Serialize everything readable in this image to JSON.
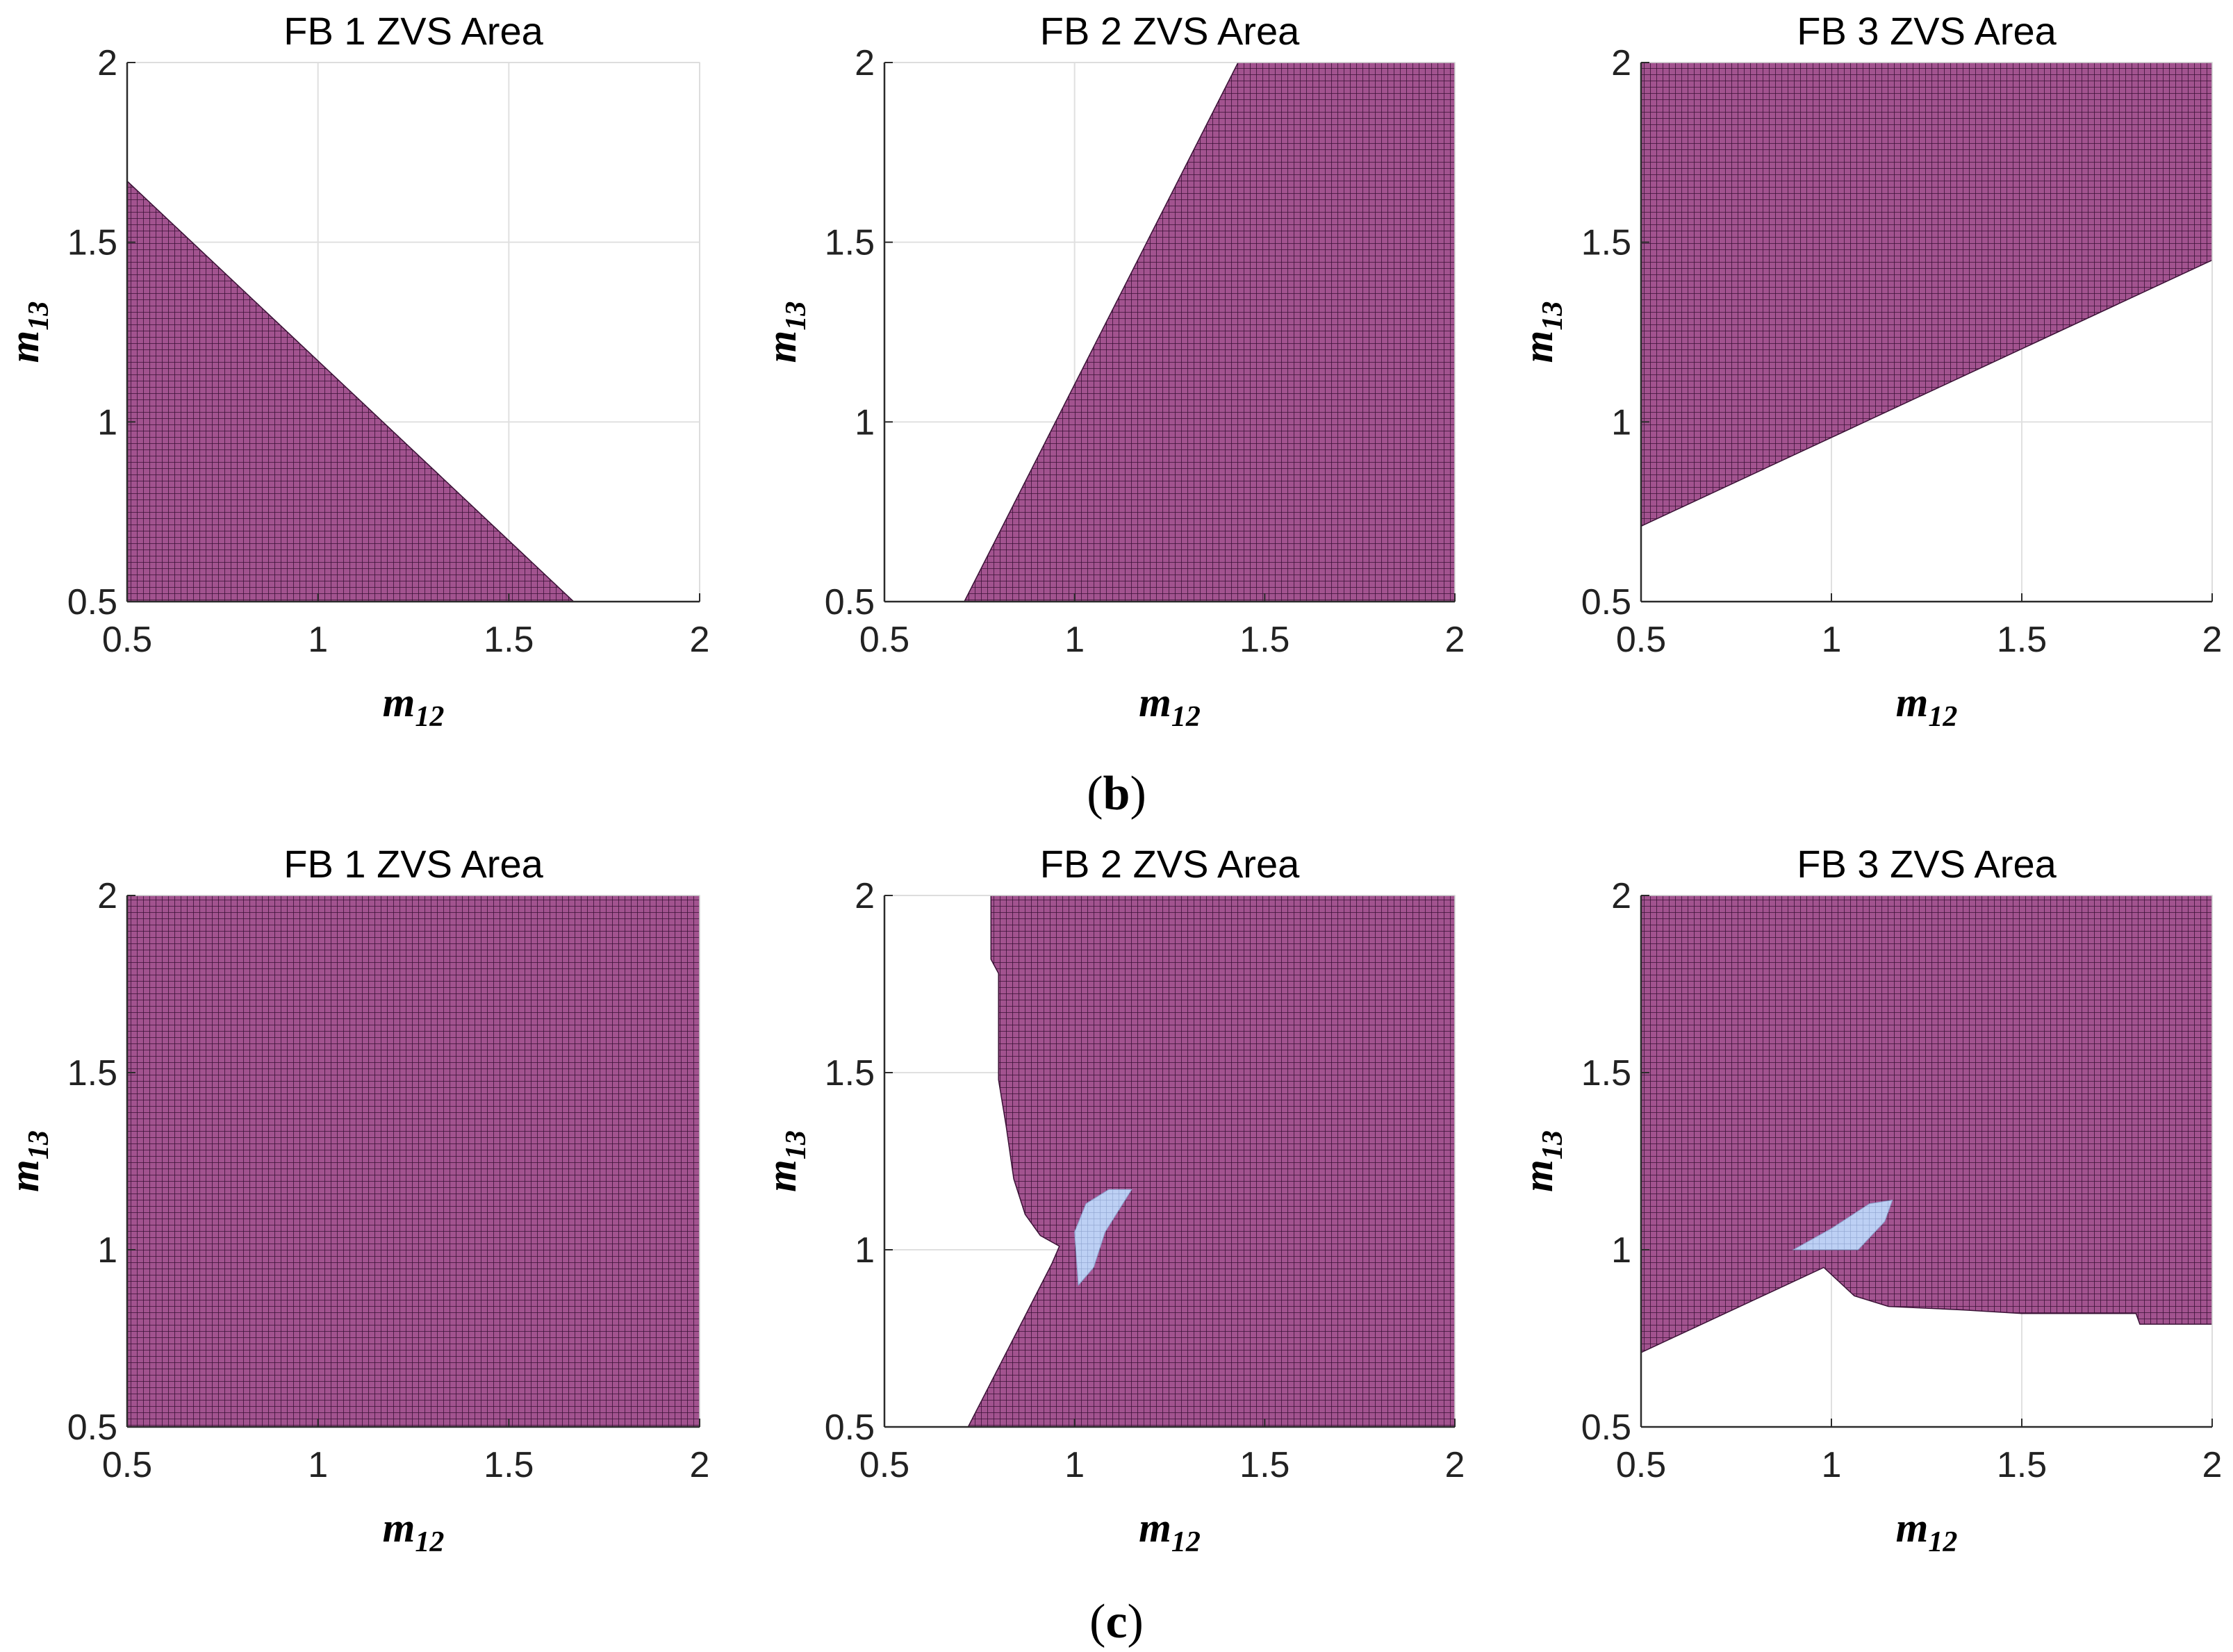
{
  "colors": {
    "zvs_fill": "#a2538f",
    "zvs_grid": "#3a1236",
    "overlap_fill": "#bdd0f4",
    "overlap_grid": "#8ea3cf",
    "gridline": "#e0e0e0",
    "axis": "#2b2b2b"
  },
  "chart_data": [
    {
      "type": "heatmap",
      "row": 1,
      "col": 1,
      "panel": "b",
      "title": "FB 1 ZVS Area",
      "xlabel": "m",
      "xlabel_sub": "12",
      "ylabel": "m",
      "ylabel_sub": "13",
      "xlim": [
        0.5,
        2
      ],
      "ylim": [
        0.5,
        2
      ],
      "xticks": [
        "0.5",
        "1",
        "1.5",
        "2"
      ],
      "yticks": [
        "0.5",
        "1",
        "1.5",
        "2"
      ],
      "zvs_region": [
        [
          0.5,
          0.5
        ],
        [
          1.67,
          0.5
        ],
        [
          0.5,
          1.67
        ]
      ],
      "overlap_region": []
    },
    {
      "type": "heatmap",
      "row": 1,
      "col": 2,
      "panel": "b",
      "title": "FB 2 ZVS Area",
      "xlabel": "m",
      "xlabel_sub": "12",
      "ylabel": "m",
      "ylabel_sub": "13",
      "xlim": [
        0.5,
        2
      ],
      "ylim": [
        0.5,
        2
      ],
      "xticks": [
        "0.5",
        "1",
        "1.5",
        "2"
      ],
      "yticks": [
        "0.5",
        "1",
        "1.5",
        "2"
      ],
      "zvs_region": [
        [
          0.71,
          0.5
        ],
        [
          2,
          0.5
        ],
        [
          2,
          2
        ],
        [
          1.43,
          2
        ]
      ],
      "overlap_region": []
    },
    {
      "type": "heatmap",
      "row": 1,
      "col": 3,
      "panel": "b",
      "title": "FB 3 ZVS Area",
      "xlabel": "m",
      "xlabel_sub": "12",
      "ylabel": "m",
      "ylabel_sub": "13",
      "xlim": [
        0.5,
        2
      ],
      "ylim": [
        0.5,
        2
      ],
      "xticks": [
        "0.5",
        "1",
        "1.5",
        "2"
      ],
      "yticks": [
        "0.5",
        "1",
        "1.5",
        "2"
      ],
      "zvs_region": [
        [
          0.5,
          0.71
        ],
        [
          2,
          1.45
        ],
        [
          2,
          2
        ],
        [
          0.5,
          2
        ]
      ],
      "overlap_region": []
    },
    {
      "type": "heatmap",
      "row": 2,
      "col": 1,
      "panel": "c",
      "title": "FB 1 ZVS Area",
      "xlabel": "m",
      "xlabel_sub": "12",
      "ylabel": "m",
      "ylabel_sub": "13",
      "xlim": [
        0.5,
        2
      ],
      "ylim": [
        0.5,
        2
      ],
      "xticks": [
        "0.5",
        "1",
        "1.5",
        "2"
      ],
      "yticks": [
        "0.5",
        "1",
        "1.5",
        "2"
      ],
      "zvs_region": [
        [
          0.5,
          0.5
        ],
        [
          2,
          0.5
        ],
        [
          2,
          2
        ],
        [
          0.5,
          2
        ]
      ],
      "overlap_region": []
    },
    {
      "type": "heatmap",
      "row": 2,
      "col": 2,
      "panel": "c",
      "title": "FB 2 ZVS Area",
      "xlabel": "m",
      "xlabel_sub": "12",
      "ylabel": "m",
      "ylabel_sub": "13",
      "xlim": [
        0.5,
        2
      ],
      "ylim": [
        0.5,
        2
      ],
      "xticks": [
        "0.5",
        "1",
        "1.5",
        "2"
      ],
      "yticks": [
        "0.5",
        "1",
        "1.5",
        "2"
      ],
      "zvs_region": [
        [
          0.72,
          0.5
        ],
        [
          2,
          0.5
        ],
        [
          2,
          2
        ],
        [
          0.78,
          2
        ],
        [
          0.78,
          1.82
        ],
        [
          0.8,
          1.78
        ],
        [
          0.8,
          1.48
        ],
        [
          0.82,
          1.35
        ],
        [
          0.84,
          1.2
        ],
        [
          0.87,
          1.1
        ],
        [
          0.91,
          1.04
        ],
        [
          0.96,
          1.01
        ],
        [
          0.94,
          0.96
        ]
      ],
      "overlap_region": [
        [
          1.01,
          0.9
        ],
        [
          1.05,
          0.95
        ],
        [
          1.08,
          1.05
        ],
        [
          1.15,
          1.17
        ],
        [
          1.09,
          1.17
        ],
        [
          1.03,
          1.13
        ],
        [
          1.0,
          1.05
        ]
      ]
    },
    {
      "type": "heatmap",
      "row": 2,
      "col": 3,
      "panel": "c",
      "title": "FB 3 ZVS Area",
      "xlabel": "m",
      "xlabel_sub": "12",
      "ylabel": "m",
      "ylabel_sub": "13",
      "xlim": [
        0.5,
        2
      ],
      "ylim": [
        0.5,
        2
      ],
      "xticks": [
        "0.5",
        "1",
        "1.5",
        "2"
      ],
      "yticks": [
        "0.5",
        "1",
        "1.5",
        "2"
      ],
      "zvs_region": [
        [
          0.5,
          0.71
        ],
        [
          0.98,
          0.95
        ],
        [
          1.06,
          0.87
        ],
        [
          1.15,
          0.84
        ],
        [
          1.35,
          0.83
        ],
        [
          1.5,
          0.82
        ],
        [
          1.8,
          0.82
        ],
        [
          1.81,
          0.79
        ],
        [
          2,
          0.79
        ],
        [
          2,
          2
        ],
        [
          0.5,
          2
        ]
      ],
      "overlap_region": [
        [
          0.9,
          1.0
        ],
        [
          1.0,
          1.06
        ],
        [
          1.1,
          1.13
        ],
        [
          1.16,
          1.14
        ],
        [
          1.14,
          1.08
        ],
        [
          1.07,
          1.0
        ]
      ]
    }
  ],
  "captions": {
    "b": "(b)",
    "c": "(c)",
    "b_open": "(",
    "b_letter": "b",
    "b_close": ")",
    "c_open": "(",
    "c_letter": "c",
    "c_close": ")"
  }
}
